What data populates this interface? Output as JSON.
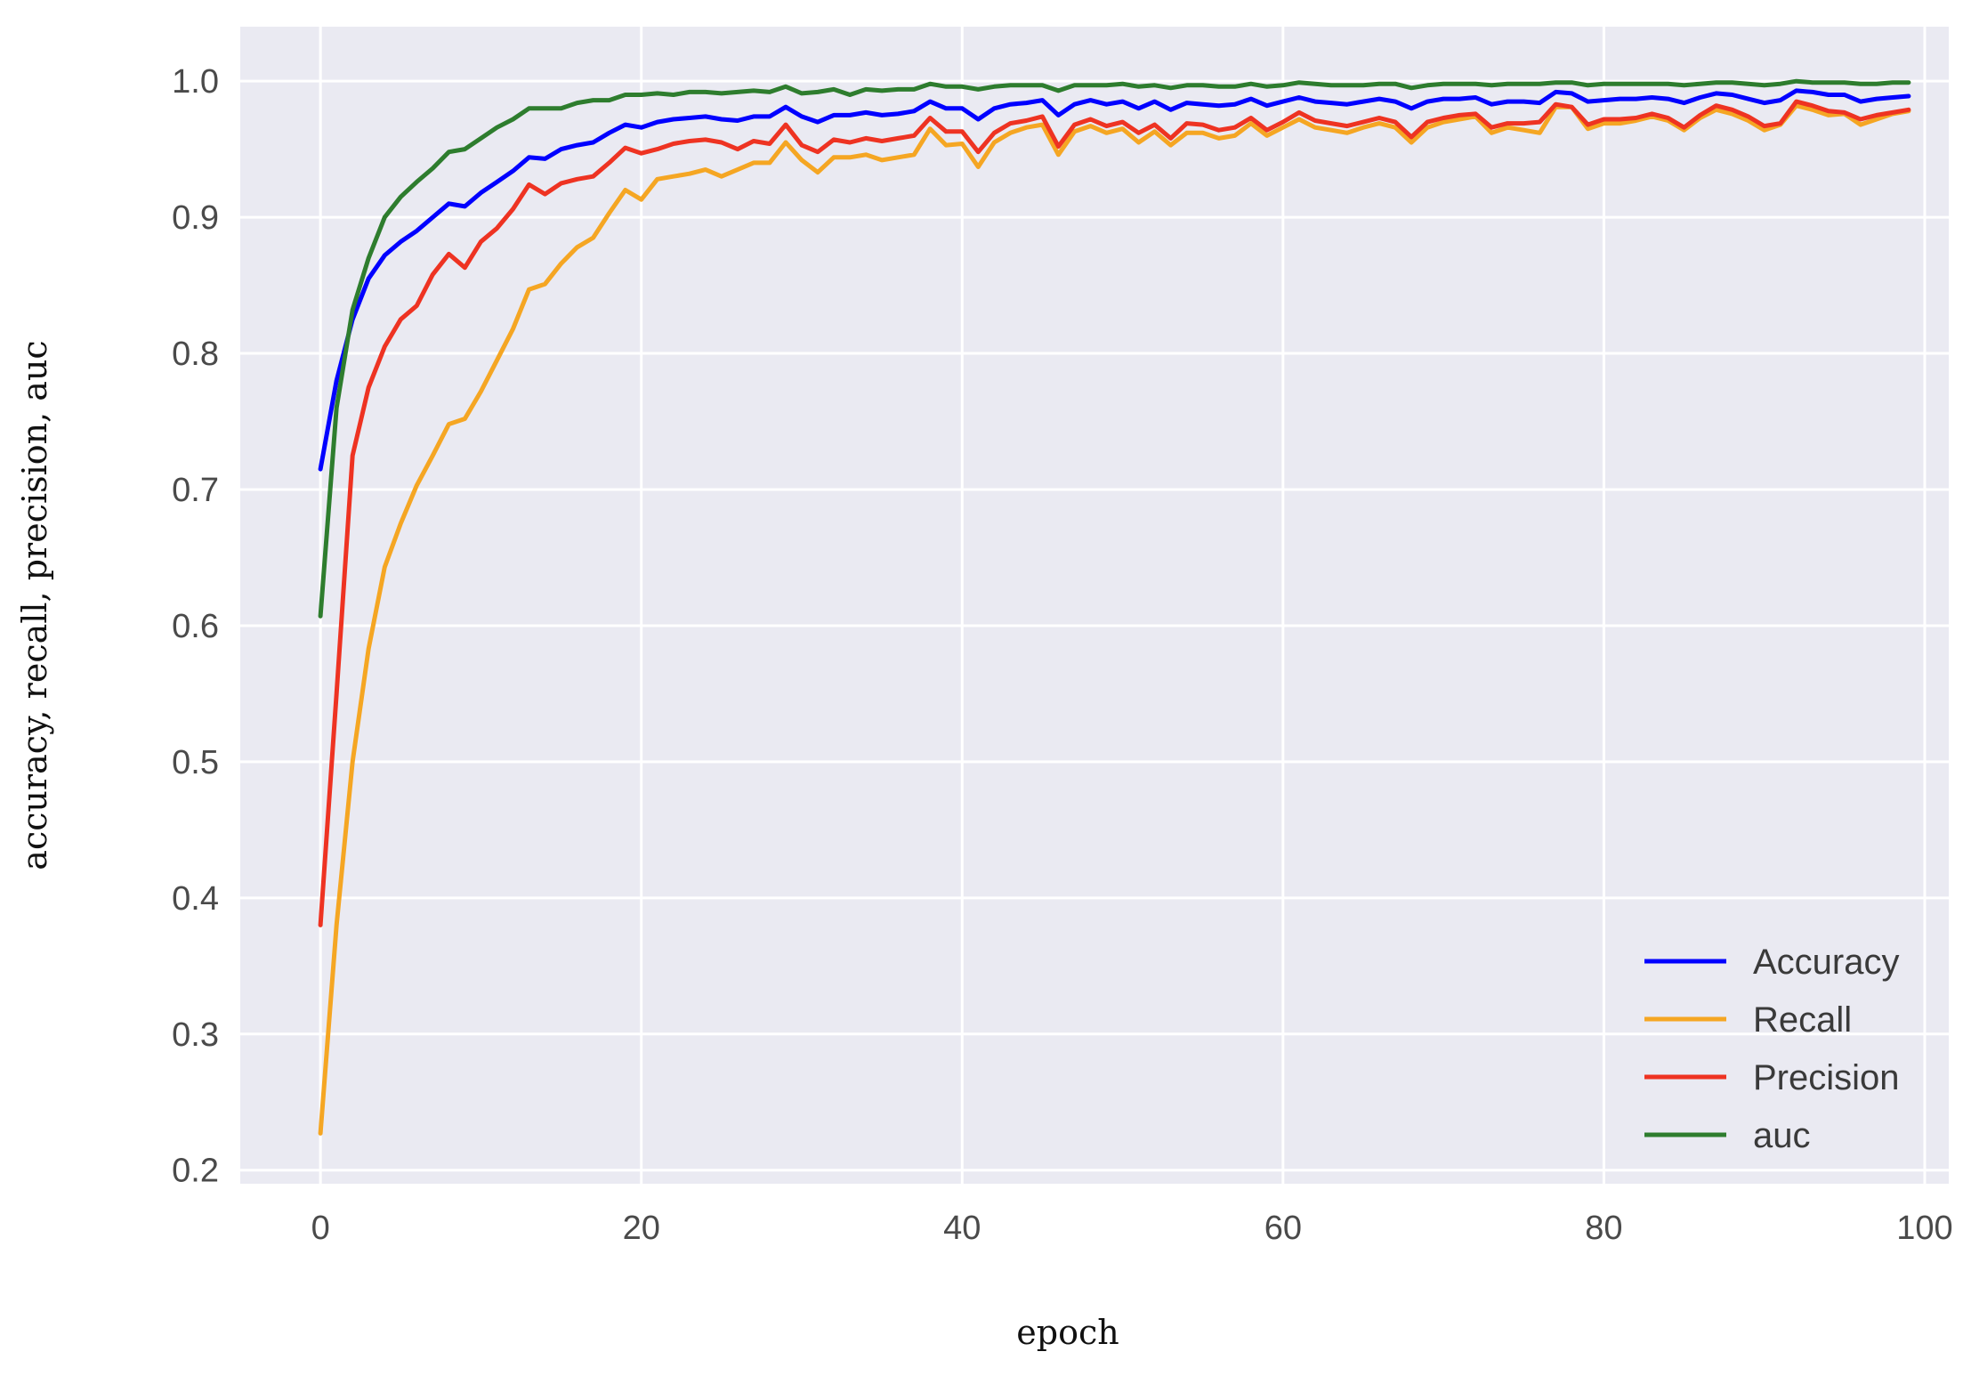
{
  "chart_data": {
    "type": "line",
    "title": "",
    "xlabel": "epoch",
    "ylabel": "accuracy, recall, precision, auc",
    "xlim": [
      -5,
      101.5
    ],
    "ylim": [
      0.19,
      1.04
    ],
    "x_ticks": [
      0,
      20,
      40,
      60,
      80,
      100
    ],
    "y_ticks": [
      0.2,
      0.3,
      0.4,
      0.5,
      0.6,
      0.7,
      0.8,
      0.9,
      1.0
    ],
    "x_tick_labels": [
      "0",
      "20",
      "40",
      "60",
      "80",
      "100"
    ],
    "y_tick_labels": [
      "0.2",
      "0.3",
      "0.4",
      "0.5",
      "0.6",
      "0.7",
      "0.8",
      "0.9",
      "1.0"
    ],
    "grid": true,
    "background": "#eaeaf2",
    "legend_position": "lower-right",
    "x": [
      0,
      1,
      2,
      3,
      4,
      5,
      6,
      7,
      8,
      9,
      10,
      11,
      12,
      13,
      14,
      15,
      16,
      17,
      18,
      19,
      20,
      21,
      22,
      23,
      24,
      25,
      26,
      27,
      28,
      29,
      30,
      31,
      32,
      33,
      34,
      35,
      36,
      37,
      38,
      39,
      40,
      41,
      42,
      43,
      44,
      45,
      46,
      47,
      48,
      49,
      50,
      51,
      52,
      53,
      54,
      55,
      56,
      57,
      58,
      59,
      60,
      61,
      62,
      63,
      64,
      65,
      66,
      67,
      68,
      69,
      70,
      71,
      72,
      73,
      74,
      75,
      76,
      77,
      78,
      79,
      80,
      81,
      82,
      83,
      84,
      85,
      86,
      87,
      88,
      89,
      90,
      91,
      92,
      93,
      94,
      95,
      96,
      97,
      98,
      99
    ],
    "series": [
      {
        "name": "Accuracy",
        "color": "#0000ff",
        "values": [
          0.715,
          0.78,
          0.825,
          0.855,
          0.872,
          0.882,
          0.89,
          0.9,
          0.91,
          0.908,
          0.918,
          0.926,
          0.934,
          0.944,
          0.943,
          0.95,
          0.953,
          0.955,
          0.962,
          0.968,
          0.966,
          0.97,
          0.972,
          0.973,
          0.974,
          0.972,
          0.971,
          0.974,
          0.974,
          0.981,
          0.974,
          0.97,
          0.975,
          0.975,
          0.977,
          0.975,
          0.976,
          0.978,
          0.985,
          0.98,
          0.98,
          0.972,
          0.98,
          0.983,
          0.984,
          0.986,
          0.975,
          0.983,
          0.986,
          0.983,
          0.985,
          0.98,
          0.985,
          0.979,
          0.984,
          0.983,
          0.982,
          0.983,
          0.987,
          0.982,
          0.985,
          0.988,
          0.985,
          0.984,
          0.983,
          0.985,
          0.987,
          0.985,
          0.98,
          0.985,
          0.987,
          0.987,
          0.988,
          0.983,
          0.985,
          0.985,
          0.984,
          0.992,
          0.991,
          0.985,
          0.986,
          0.987,
          0.987,
          0.988,
          0.987,
          0.984,
          0.988,
          0.991,
          0.99,
          0.987,
          0.984,
          0.986,
          0.993,
          0.992,
          0.99,
          0.99,
          0.985,
          0.987,
          0.988,
          0.989
        ]
      },
      {
        "name": "Recall",
        "color": "#f5a623",
        "values": [
          0.227,
          0.38,
          0.5,
          0.583,
          0.643,
          0.675,
          0.703,
          0.725,
          0.748,
          0.752,
          0.772,
          0.795,
          0.818,
          0.847,
          0.851,
          0.866,
          0.878,
          0.885,
          0.903,
          0.92,
          0.913,
          0.928,
          0.93,
          0.932,
          0.935,
          0.93,
          0.935,
          0.94,
          0.94,
          0.955,
          0.942,
          0.933,
          0.944,
          0.944,
          0.946,
          0.942,
          0.944,
          0.946,
          0.965,
          0.953,
          0.954,
          0.937,
          0.955,
          0.962,
          0.966,
          0.968,
          0.946,
          0.963,
          0.967,
          0.962,
          0.965,
          0.955,
          0.963,
          0.953,
          0.962,
          0.962,
          0.958,
          0.96,
          0.969,
          0.96,
          0.966,
          0.972,
          0.966,
          0.964,
          0.962,
          0.966,
          0.969,
          0.966,
          0.955,
          0.966,
          0.97,
          0.972,
          0.974,
          0.962,
          0.966,
          0.964,
          0.962,
          0.981,
          0.981,
          0.965,
          0.969,
          0.969,
          0.971,
          0.974,
          0.971,
          0.964,
          0.973,
          0.979,
          0.976,
          0.971,
          0.964,
          0.968,
          0.982,
          0.979,
          0.975,
          0.976,
          0.968,
          0.972,
          0.976,
          0.978
        ]
      },
      {
        "name": "Precision",
        "color": "#ee3322",
        "values": [
          0.38,
          0.55,
          0.725,
          0.775,
          0.805,
          0.825,
          0.835,
          0.858,
          0.873,
          0.863,
          0.882,
          0.892,
          0.906,
          0.924,
          0.917,
          0.925,
          0.928,
          0.93,
          0.94,
          0.951,
          0.947,
          0.95,
          0.954,
          0.956,
          0.957,
          0.955,
          0.95,
          0.956,
          0.954,
          0.968,
          0.953,
          0.948,
          0.957,
          0.955,
          0.958,
          0.956,
          0.958,
          0.96,
          0.973,
          0.963,
          0.963,
          0.948,
          0.962,
          0.969,
          0.971,
          0.974,
          0.952,
          0.968,
          0.972,
          0.967,
          0.97,
          0.962,
          0.968,
          0.958,
          0.969,
          0.968,
          0.964,
          0.966,
          0.973,
          0.964,
          0.97,
          0.977,
          0.971,
          0.969,
          0.967,
          0.97,
          0.973,
          0.97,
          0.959,
          0.97,
          0.973,
          0.975,
          0.976,
          0.966,
          0.969,
          0.969,
          0.97,
          0.983,
          0.981,
          0.968,
          0.972,
          0.972,
          0.973,
          0.976,
          0.973,
          0.966,
          0.975,
          0.982,
          0.979,
          0.974,
          0.967,
          0.969,
          0.985,
          0.982,
          0.978,
          0.977,
          0.972,
          0.975,
          0.977,
          0.979
        ]
      },
      {
        "name": "auc",
        "color": "#2e7d2e",
        "values": [
          0.607,
          0.76,
          0.832,
          0.87,
          0.9,
          0.915,
          0.926,
          0.936,
          0.948,
          0.95,
          0.958,
          0.966,
          0.972,
          0.98,
          0.98,
          0.98,
          0.984,
          0.986,
          0.986,
          0.99,
          0.99,
          0.991,
          0.99,
          0.992,
          0.992,
          0.991,
          0.992,
          0.993,
          0.992,
          0.996,
          0.991,
          0.992,
          0.994,
          0.99,
          0.994,
          0.993,
          0.994,
          0.994,
          0.998,
          0.996,
          0.996,
          0.994,
          0.996,
          0.997,
          0.997,
          0.997,
          0.993,
          0.997,
          0.997,
          0.997,
          0.998,
          0.996,
          0.997,
          0.995,
          0.997,
          0.997,
          0.996,
          0.996,
          0.998,
          0.996,
          0.997,
          0.999,
          0.998,
          0.997,
          0.997,
          0.997,
          0.998,
          0.998,
          0.995,
          0.997,
          0.998,
          0.998,
          0.998,
          0.997,
          0.998,
          0.998,
          0.998,
          0.999,
          0.999,
          0.997,
          0.998,
          0.998,
          0.998,
          0.998,
          0.998,
          0.997,
          0.998,
          0.999,
          0.999,
          0.998,
          0.997,
          0.998,
          1.0,
          0.999,
          0.999,
          0.999,
          0.998,
          0.998,
          0.999,
          0.999
        ]
      }
    ]
  }
}
